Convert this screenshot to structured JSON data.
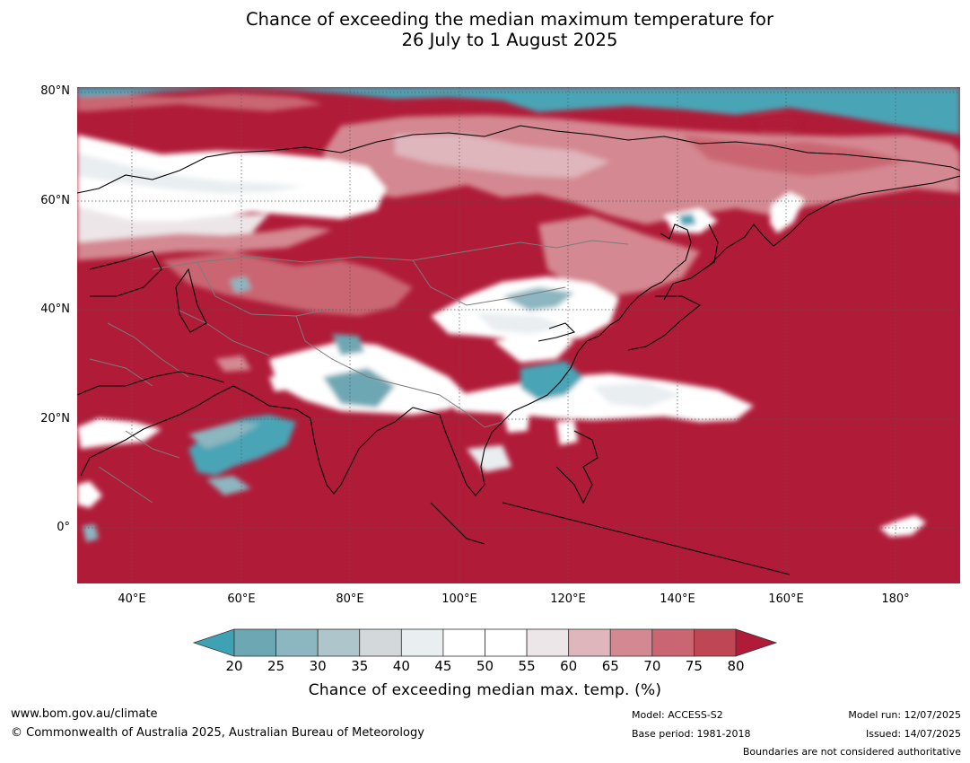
{
  "title_line1": "Chance of exceeding the median maximum temperature for",
  "title_line2": "26 July to 1 August 2025",
  "lat_labels": [
    "80°N",
    "60°N",
    "40°N",
    "20°N",
    "0°"
  ],
  "lon_labels": [
    "40°E",
    "60°E",
    "80°E",
    "100°E",
    "120°E",
    "140°E",
    "160°E",
    "180°"
  ],
  "colorbar": {
    "ticks": [
      "20",
      "25",
      "30",
      "35",
      "40",
      "45",
      "50",
      "55",
      "60",
      "65",
      "70",
      "75",
      "80"
    ],
    "title": "Chance of exceeding median max. temp. (%)",
    "under_color": "#3fa2b4",
    "over_color": "#b01b38",
    "colors": [
      "#6ea7b4",
      "#8cb6c0",
      "#adc5cb",
      "#d3d9da",
      "#e9eef0",
      "#ffffff",
      "#ffffff",
      "#ece6e8",
      "#dfb6bc",
      "#d48891",
      "#c96672",
      "#bf4654"
    ]
  },
  "footer": {
    "website": "www.bom.gov.au/climate",
    "copyright": "© Commonwealth of Australia 2025, Australian Bureau of Meteorology",
    "model": "Model: ACCESS-S2",
    "base_period": "Base period: 1981-2018",
    "model_run": "Model run: 12/07/2025",
    "issued": "Issued: 14/07/2025",
    "boundaries": "Boundaries are not considered authoritative"
  }
}
